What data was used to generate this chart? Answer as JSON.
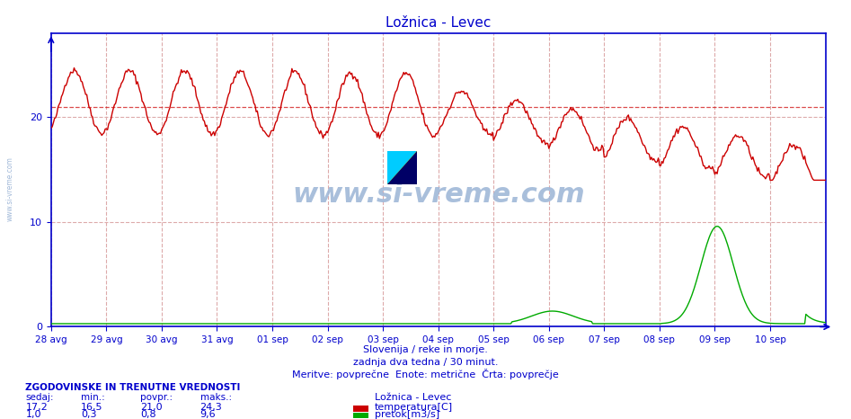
{
  "title": "Ložnica - Levec",
  "title_color": "#0000cc",
  "bg_color": "#ffffff",
  "plot_bg_color": "#ffffff",
  "grid_color": "#ddaaaa",
  "axis_color": "#0000cc",
  "xlabel_lines": [
    "Slovenija / reke in morje.",
    "zadnja dva tedna / 30 minut.",
    "Meritve: povprečne  Enote: metrične  Črta: povprečje"
  ],
  "x_tick_labels": [
    "28 avg",
    "29 avg",
    "30 avg",
    "31 avg",
    "01 sep",
    "02 sep",
    "03 sep",
    "04 sep",
    "05 sep",
    "06 sep",
    "07 sep",
    "08 sep",
    "09 sep",
    "10 sep"
  ],
  "x_tick_positions": [
    0,
    48,
    96,
    144,
    192,
    240,
    288,
    336,
    384,
    432,
    480,
    528,
    576,
    624
  ],
  "y_ticks": [
    0,
    10,
    20
  ],
  "ylim": [
    0,
    28
  ],
  "xlim_min": 0,
  "xlim_max": 672,
  "temp_avg": 21.0,
  "temp_color": "#cc0000",
  "flow_color": "#00aa00",
  "watermark_text": "www.si-vreme.com",
  "watermark_color": "#a0b8d8",
  "sidebar_text": "www.si-vreme.com",
  "legend_title": "Ložnica - Levec",
  "legend_items": [
    {
      "label": "temperatura[C]",
      "color": "#cc0000"
    },
    {
      "label": "pretok[m3/s]",
      "color": "#00aa00"
    }
  ],
  "stats_header": "ZGODOVINSKE IN TRENUTNE VREDNOSTI",
  "stats_cols": [
    "sedaj:",
    "min.:",
    "povpr.:",
    "maks.:"
  ],
  "stats_rows": [
    [
      "17,2",
      "16,5",
      "21,0",
      "24,3"
    ],
    [
      "1,0",
      "0,3",
      "0,8",
      "9,6"
    ]
  ]
}
